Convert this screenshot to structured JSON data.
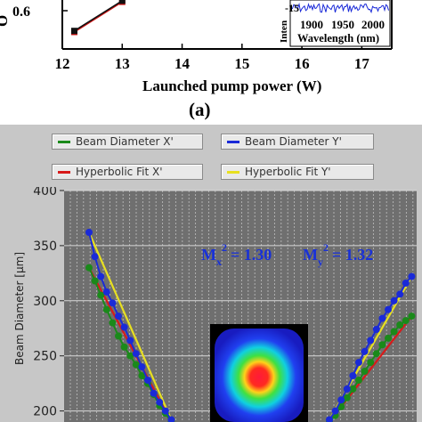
{
  "chart_data": [
    {
      "type": "line",
      "title": "",
      "xlabel": "Launched pump power (W)",
      "ylabel": "O",
      "xlim": [
        12,
        17.5
      ],
      "ylim": [
        0.5,
        0.63
      ],
      "x_ticks": [
        "12",
        "13",
        "14",
        "15",
        "16",
        "17"
      ],
      "y_ticks": [
        "0.6"
      ],
      "panel_label": "(a)",
      "series": [
        {
          "x": [
            12.2,
            13.0
          ],
          "y": [
            0.545,
            0.625
          ],
          "color": "#cc1111"
        },
        {
          "x": [
            12.2,
            13.0
          ],
          "y": [
            0.548,
            0.628
          ],
          "color": "#111111"
        }
      ],
      "inset": {
        "xlabel": "Wavelength (nm)",
        "ylabel": "Inten",
        "x_ticks": [
          "1900",
          "1950",
          "2000"
        ],
        "y_ticks": [
          "-15"
        ],
        "xlim": [
          1880,
          2010
        ],
        "ylim": [
          -18,
          -10
        ]
      }
    },
    {
      "type": "scatter",
      "ylabel": "Beam Diameter [µm]",
      "ylim": [
        190,
        400
      ],
      "y_ticks": [
        "400",
        "350",
        "300",
        "250",
        "200"
      ],
      "annotation_mx": "M",
      "annotation_mx_sub": "x",
      "annotation_mx_val": "= 1.30",
      "annotation_my": "M",
      "annotation_my_sub": "y",
      "annotation_my_val": "= 1.32",
      "annotation_sup": "2",
      "legend": [
        {
          "label": "Beam Diameter X'",
          "color": "#1a8a1a"
        },
        {
          "label": "Beam Diameter Y'",
          "color": "#1a2ad8"
        },
        {
          "label": "Hyperbolic Fit X'",
          "color": "#d81a1a"
        },
        {
          "label": "Hyperbolic Fit Y'",
          "color": "#e8e020"
        }
      ],
      "x": [
        0,
        1,
        2,
        3,
        4,
        5,
        6,
        7,
        8,
        9,
        10,
        11,
        12,
        13,
        14,
        15,
        16,
        17,
        18,
        19,
        20,
        21,
        22,
        23,
        24,
        25,
        26,
        27,
        28,
        29,
        30
      ],
      "series": [
        {
          "name": "Beam Diameter X'",
          "color": "#1a8a1a",
          "side": "left",
          "values": [
            330,
            318,
            305,
            292,
            280,
            268,
            258,
            250,
            242,
            232,
            225,
            215,
            205,
            198,
            190
          ]
        },
        {
          "name": "Beam Diameter Y'",
          "color": "#1a2ad8",
          "side": "left",
          "values": [
            362,
            340,
            322,
            308,
            298,
            286,
            276,
            264,
            252,
            240,
            228,
            216,
            208,
            200,
            192
          ]
        },
        {
          "name": "Beam Diameter X'",
          "color": "#1a8a1a",
          "side": "right",
          "values": [
            190,
            196,
            204,
            212,
            220,
            228,
            236,
            244,
            252,
            260,
            266,
            272,
            278,
            282,
            286
          ]
        },
        {
          "name": "Beam Diameter Y'",
          "color": "#1a2ad8",
          "side": "right",
          "values": [
            192,
            200,
            210,
            220,
            232,
            244,
            254,
            264,
            274,
            284,
            292,
            300,
            306,
            316,
            322
          ]
        }
      ]
    }
  ]
}
